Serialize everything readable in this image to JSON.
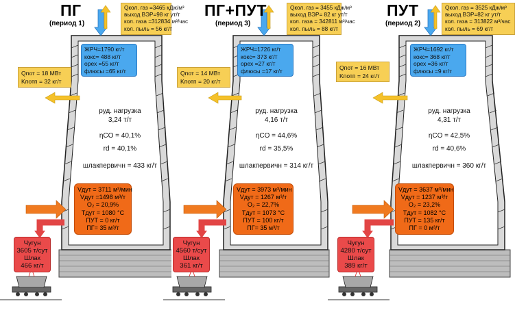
{
  "panels": [
    {
      "title": "ПГ",
      "period": "(период 1)",
      "top_info": [
        "Qкол. газ =3465 кДж/м³",
        "выход ВЭР=98 кг ут/т",
        "кол. газа =312834 м³/час",
        "кол. пыль = 56 кг/т"
      ],
      "charge": [
        "ЖРЧ=1790 кг/т",
        "кокс= 488 кг/т",
        "орех =55 кг/т",
        "флюсы =65 кг/т"
      ],
      "losses": [
        "Qпот = 18 МВт",
        "Kпотп = 32 кг/т"
      ],
      "middle": [
        "руд. нагрузка",
        "3,24 т/т",
        "ηCO = 40,1%",
        "rd = 40,1%",
        "шлакпервичн = 433 кг/т"
      ],
      "blast": [
        "Vдут = 3711 м³/мин",
        "Vдут =1498 м³/т",
        "O₂ = 20,9%",
        "Tдут = 1080 °C",
        "ПУТ = 0 кг/т",
        "ПГ= 35 м³/т"
      ],
      "output": [
        "Чугун",
        "3605 т/сут",
        "Шлак",
        "466 кг/т"
      ]
    },
    {
      "title": "ПГ+ПУТ",
      "period": "(период 3)",
      "top_info": [
        "Qкол. газ = 3455 кДж/м³",
        "выход ВЭР= 82 кг ут/т",
        "кол. газа = 342811 м³/час",
        "кол. пыль = 88 кг/т"
      ],
      "charge": [
        "ЖРЧ=1726 кг/т",
        "кокс= 373 кг/т",
        "орех =27 кг/т",
        "флюсы =17 кг/т"
      ],
      "losses": [
        "Qпот = 14 МВт",
        "Kпотп = 20 кг/т"
      ],
      "middle": [
        "руд. нагрузка",
        "4,16 т/т",
        "ηCO = 44,6%",
        "rd = 35,5%",
        "шлакпервичн = 314 кг/т"
      ],
      "blast": [
        "Vдут = 3973 м³/мин",
        "Vдут = 1267 м³/т",
        "O₂ = 22,7%",
        "Tдут = 1073 °C",
        "ПУТ = 100 кг/т",
        "ПГ= 35 м³/т"
      ],
      "output": [
        "Чугун",
        "4560 т/сут",
        "Шлак",
        "361 кг/т"
      ]
    },
    {
      "title": "ПУТ",
      "period": "(период 2)",
      "top_info": [
        "Qкол. газ = 3525 кДж/м³",
        "выход ВЭР=82 кг ут/т",
        "кол. газа = 313822 м³/час",
        "кол. пыль = 69 кг/т"
      ],
      "charge": [
        "ЖРЧ=1692 кг/т",
        "кокс= 368 кг/т",
        "орех =36 кг/т",
        "флюсы =9 кг/т"
      ],
      "losses": [
        "Qпот = 16 МВт",
        "Kпотп = 24 кг/т"
      ],
      "middle": [
        "руд. нагрузка",
        "4,31 т/т",
        "ηCO = 42,5%",
        "rd = 40,6%",
        "шлакпервичн = 360 кг/т"
      ],
      "blast": [
        "Vдут = 3637 м³/мин",
        "Vдут = 1237 м³/т",
        "O₂ = 23,2%",
        "Tдут = 1082 °C",
        "ПУТ = 135 кг/т",
        "ПГ = 0 м³/т"
      ],
      "output": [
        "Чугун",
        "4280 т/сут",
        "Шлак",
        "389 кг/т"
      ]
    }
  ]
}
